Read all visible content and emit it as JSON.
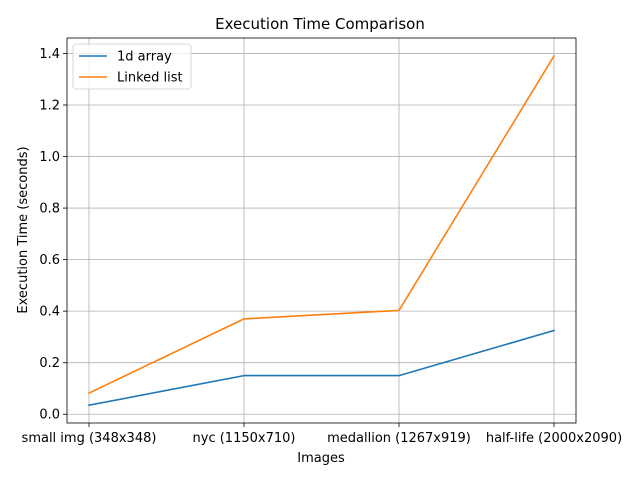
{
  "chart_data": {
    "type": "line",
    "title": "Execution Time Comparison",
    "xlabel": "Images",
    "ylabel": "Execution Time (seconds)",
    "categories": [
      "small img (348x348)",
      "nyc (1150x710)",
      "medallion (1267x919)",
      "half-life (2000x2090)"
    ],
    "series": [
      {
        "name": "1d array",
        "color": "#1f77b4",
        "values": [
          0.035,
          0.15,
          0.15,
          0.325
        ]
      },
      {
        "name": "Linked list",
        "color": "#ff7f0e",
        "values": [
          0.082,
          0.37,
          0.403,
          1.39
        ]
      }
    ],
    "ylim": [
      -0.034,
      1.46
    ],
    "yticks": [
      0.0,
      0.2,
      0.4,
      0.6,
      0.8,
      1.0,
      1.2,
      1.4
    ],
    "ytick_labels": [
      "0.0",
      "0.2",
      "0.4",
      "0.6",
      "0.8",
      "1.0",
      "1.2",
      "1.4"
    ],
    "grid": true,
    "legend_position": "top-left"
  }
}
